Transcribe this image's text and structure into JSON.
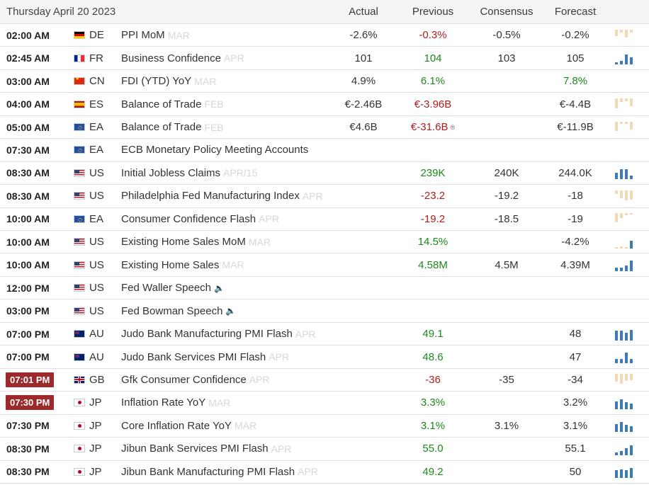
{
  "header": {
    "date": "Thursday April 20 2023",
    "actual": "Actual",
    "previous": "Previous",
    "consensus": "Consensus",
    "forecast": "Forecast"
  },
  "colors": {
    "positive": "#1b8a1b",
    "negative": "#b01c1c",
    "highlight_time": "#9c2a2a",
    "spark_blue": "#3d7ab8",
    "spark_tan": "#f3d9b3"
  },
  "rows": [
    {
      "time": "02:00 AM",
      "highlight": false,
      "flag": "de",
      "country": "DE",
      "event": "PPI MoM",
      "ref": "MAR",
      "actual": "-2.6%",
      "actual_color": "",
      "previous": "-0.3%",
      "previous_color": "r",
      "consensus": "-0.5%",
      "forecast": "-0.2%",
      "forecast_color": "",
      "spark": "tan",
      "bars": [
        0.5,
        0.2,
        0.6,
        0.2
      ],
      "speaker": false,
      "revised": false
    },
    {
      "time": "02:45 AM",
      "highlight": false,
      "flag": "fr",
      "country": "FR",
      "event": "Business Confidence",
      "ref": "APR",
      "actual": "101",
      "actual_color": "",
      "previous": "104",
      "previous_color": "g",
      "consensus": "103",
      "forecast": "105",
      "forecast_color": "",
      "spark": "blue",
      "bars": [
        0.15,
        0.3,
        0.8,
        0.55
      ],
      "speaker": false,
      "revised": false
    },
    {
      "time": "03:00 AM",
      "highlight": false,
      "flag": "cn",
      "country": "CN",
      "event": "FDI (YTD) YoY",
      "ref": "MAR",
      "actual": "4.9%",
      "actual_color": "",
      "previous": "6.1%",
      "previous_color": "g",
      "consensus": "",
      "forecast": "7.8%",
      "forecast_color": "g",
      "spark": "none",
      "bars": [],
      "speaker": false,
      "revised": false
    },
    {
      "time": "04:00 AM",
      "highlight": false,
      "flag": "es",
      "country": "ES",
      "event": "Balance of Trade",
      "ref": "FEB",
      "actual": "€-2.46B",
      "actual_color": "",
      "previous": "€-3.96B",
      "previous_color": "r",
      "consensus": "",
      "forecast": "€-4.4B",
      "forecast_color": "",
      "spark": "tan",
      "bars": [
        0.8,
        0.25,
        0.2,
        0.6
      ],
      "speaker": false,
      "revised": false
    },
    {
      "time": "05:00 AM",
      "highlight": false,
      "flag": "ea",
      "country": "EA",
      "event": "Balance of Trade",
      "ref": "FEB",
      "actual": "€4.6B",
      "actual_color": "",
      "previous": "€-31.6B",
      "previous_color": "r",
      "consensus": "",
      "forecast": "€-11.9B",
      "forecast_color": "",
      "spark": "tan",
      "bars": [
        0.7,
        0.15,
        0.15,
        0.6
      ],
      "speaker": false,
      "revised": true
    },
    {
      "time": "07:30 AM",
      "highlight": false,
      "flag": "ea",
      "country": "EA",
      "event": "ECB Monetary Policy Meeting Accounts",
      "ref": "",
      "actual": "",
      "actual_color": "",
      "previous": "",
      "previous_color": "",
      "consensus": "",
      "forecast": "",
      "forecast_color": "",
      "spark": "none",
      "bars": [],
      "speaker": false,
      "revised": false
    },
    {
      "time": "08:30 AM",
      "highlight": false,
      "flag": "us",
      "country": "US",
      "event": "Initial Jobless Claims",
      "ref": "APR/15",
      "actual": "",
      "actual_color": "",
      "previous": "239K",
      "previous_color": "g",
      "consensus": "240K",
      "forecast": "244.0K",
      "forecast_color": "",
      "spark": "blue",
      "bars": [
        0.5,
        0.8,
        0.75,
        0.3
      ],
      "speaker": false,
      "revised": false
    },
    {
      "time": "08:30 AM",
      "highlight": false,
      "flag": "us",
      "country": "US",
      "event": "Philadelphia Fed Manufacturing Index",
      "ref": "APR",
      "actual": "",
      "actual_color": "",
      "previous": "-23.2",
      "previous_color": "r",
      "consensus": "-19.2",
      "forecast": "-18",
      "forecast_color": "",
      "spark": "tan",
      "bars": [
        0.25,
        0.6,
        0.8,
        0.7
      ],
      "speaker": false,
      "revised": false
    },
    {
      "time": "10:00 AM",
      "highlight": false,
      "flag": "ea",
      "country": "EA",
      "event": "Consumer Confidence Flash",
      "ref": "APR",
      "actual": "",
      "actual_color": "",
      "previous": "-19.2",
      "previous_color": "r",
      "consensus": "-18.5",
      "forecast": "-19",
      "forecast_color": "",
      "spark": "tan",
      "bars": [
        0.7,
        0.4,
        0.15,
        0.1
      ],
      "speaker": false,
      "revised": false
    },
    {
      "time": "10:00 AM",
      "highlight": false,
      "flag": "us",
      "country": "US",
      "event": "Existing Home Sales MoM",
      "ref": "MAR",
      "actual": "",
      "actual_color": "",
      "previous": "14.5%",
      "previous_color": "g",
      "consensus": "",
      "forecast": "-4.2%",
      "forecast_color": "",
      "spark": "mixed",
      "bars": [
        0.1,
        0.15,
        0.1,
        0.6
      ],
      "speaker": false,
      "revised": false
    },
    {
      "time": "10:00 AM",
      "highlight": false,
      "flag": "us",
      "country": "US",
      "event": "Existing Home Sales",
      "ref": "MAR",
      "actual": "",
      "actual_color": "",
      "previous": "4.58M",
      "previous_color": "g",
      "consensus": "4.5M",
      "forecast": "4.39M",
      "forecast_color": "",
      "spark": "blue",
      "bars": [
        0.3,
        0.3,
        0.45,
        0.85
      ],
      "speaker": false,
      "revised": false
    },
    {
      "time": "12:00 PM",
      "highlight": false,
      "flag": "us",
      "country": "US",
      "event": "Fed Waller Speech",
      "ref": "",
      "actual": "",
      "actual_color": "",
      "previous": "",
      "previous_color": "",
      "consensus": "",
      "forecast": "",
      "forecast_color": "",
      "spark": "none",
      "bars": [],
      "speaker": true,
      "revised": false
    },
    {
      "time": "03:00 PM",
      "highlight": false,
      "flag": "us",
      "country": "US",
      "event": "Fed Bowman Speech",
      "ref": "",
      "actual": "",
      "actual_color": "",
      "previous": "",
      "previous_color": "",
      "consensus": "",
      "forecast": "",
      "forecast_color": "",
      "spark": "none",
      "bars": [],
      "speaker": true,
      "revised": false
    },
    {
      "time": "07:00 PM",
      "highlight": false,
      "flag": "au",
      "country": "AU",
      "event": "Judo Bank Manufacturing PMI Flash",
      "ref": "APR",
      "actual": "",
      "actual_color": "",
      "previous": "49.1",
      "previous_color": "g",
      "consensus": "",
      "forecast": "48",
      "forecast_color": "",
      "spark": "blue",
      "bars": [
        0.8,
        0.75,
        0.6,
        0.85
      ],
      "speaker": false,
      "revised": false
    },
    {
      "time": "07:00 PM",
      "highlight": false,
      "flag": "au",
      "country": "AU",
      "event": "Judo Bank Services PMI Flash",
      "ref": "APR",
      "actual": "",
      "actual_color": "",
      "previous": "48.6",
      "previous_color": "g",
      "consensus": "",
      "forecast": "47",
      "forecast_color": "",
      "spark": "blue",
      "bars": [
        0.35,
        0.35,
        0.85,
        0.35
      ],
      "speaker": false,
      "revised": false
    },
    {
      "time": "07:01 PM",
      "highlight": true,
      "flag": "gb",
      "country": "GB",
      "event": "Gfk Consumer Confidence",
      "ref": "APR",
      "actual": "",
      "actual_color": "",
      "previous": "-36",
      "previous_color": "r",
      "consensus": "-35",
      "forecast": "-34",
      "forecast_color": "",
      "spark": "tan",
      "bars": [
        0.6,
        0.8,
        0.55,
        0.5
      ],
      "speaker": false,
      "revised": false
    },
    {
      "time": "07:30 PM",
      "highlight": true,
      "flag": "jp",
      "country": "JP",
      "event": "Inflation Rate YoY",
      "ref": "MAR",
      "actual": "",
      "actual_color": "",
      "previous": "3.3%",
      "previous_color": "g",
      "consensus": "",
      "forecast": "3.2%",
      "forecast_color": "",
      "spark": "blue",
      "bars": [
        0.6,
        0.75,
        0.55,
        0.45
      ],
      "speaker": false,
      "revised": false
    },
    {
      "time": "07:30 PM",
      "highlight": false,
      "flag": "jp",
      "country": "JP",
      "event": "Core Inflation Rate YoY",
      "ref": "MAR",
      "actual": "",
      "actual_color": "",
      "previous": "3.1%",
      "previous_color": "g",
      "consensus": "3.1%",
      "forecast": "3.1%",
      "forecast_color": "",
      "spark": "blue",
      "bars": [
        0.6,
        0.75,
        0.55,
        0.45
      ],
      "speaker": false,
      "revised": false
    },
    {
      "time": "08:30 PM",
      "highlight": false,
      "flag": "jp",
      "country": "JP",
      "event": "Jibun Bank Services PMI Flash",
      "ref": "APR",
      "actual": "",
      "actual_color": "",
      "previous": "55.0",
      "previous_color": "g",
      "consensus": "",
      "forecast": "55.1",
      "forecast_color": "",
      "spark": "blue",
      "bars": [
        0.2,
        0.35,
        0.55,
        0.75
      ],
      "speaker": false,
      "revised": false
    },
    {
      "time": "08:30 PM",
      "highlight": false,
      "flag": "jp",
      "country": "JP",
      "event": "Jibun Bank Manufacturing PMI Flash",
      "ref": "APR",
      "actual": "",
      "actual_color": "",
      "previous": "49.2",
      "previous_color": "g",
      "consensus": "",
      "forecast": "50",
      "forecast_color": "",
      "spark": "blue",
      "bars": [
        0.6,
        0.65,
        0.6,
        0.8
      ],
      "speaker": false,
      "revised": false
    }
  ]
}
